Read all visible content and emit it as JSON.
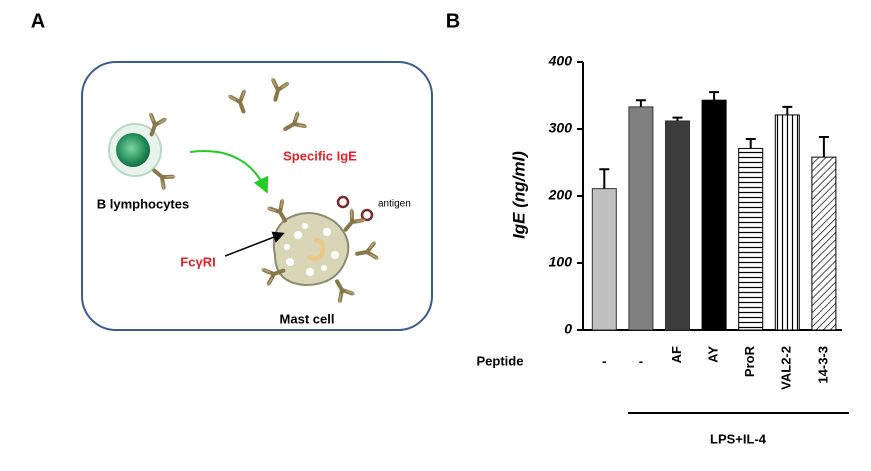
{
  "diagram": {
    "panel_label": "A",
    "labels": {
      "b_cells": "B lymphocytes",
      "ige": "Specific IgE",
      "antigen": "antigen",
      "receptor": "FcγRI",
      "mast": "Mast cell"
    }
  },
  "chart_data": {
    "type": "bar",
    "panel_label": "B",
    "y_label": "IgE (ng/ml)",
    "row_label": "Peptide",
    "bracket_label": "LPS+IL-4",
    "categories": [
      "-",
      "-",
      "AF",
      "AY",
      "ProR",
      "VAL2-2",
      "14-3-3"
    ],
    "values": [
      211,
      333,
      312,
      343,
      271,
      321,
      258
    ],
    "errors": [
      29,
      10,
      5,
      12,
      14,
      12,
      30
    ],
    "colors": [
      "#c0c0c0",
      "#808080",
      "#3c3c3c",
      "#000000",
      "#000000",
      "#000000",
      "#000000"
    ],
    "patterns": [
      "solid",
      "solid",
      "solid",
      "solid",
      "horizontal",
      "vertical",
      "diagonal"
    ],
    "ylim": [
      0,
      400
    ],
    "yticks": [
      0,
      100,
      200,
      300,
      400
    ]
  }
}
